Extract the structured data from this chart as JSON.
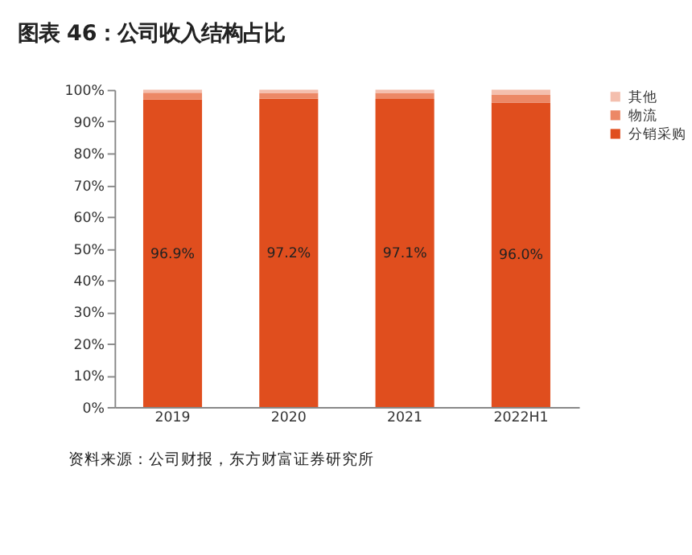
{
  "chart_data": {
    "type": "bar",
    "stacked": true,
    "title": "图表 46：公司收入结构占比",
    "categories": [
      "2019",
      "2020",
      "2021",
      "2022H1"
    ],
    "series": [
      {
        "name": "分销采购",
        "color": "#e04e1e",
        "values": [
          96.9,
          97.2,
          97.1,
          96.0
        ],
        "value_labels": [
          "96.9%",
          "97.2%",
          "97.1%",
          "96.0%"
        ]
      },
      {
        "name": "物流",
        "color": "#ec8866",
        "values": [
          2.2,
          1.8,
          1.9,
          2.5
        ]
      },
      {
        "name": "其他",
        "color": "#f4bfae",
        "values": [
          0.9,
          1.0,
          1.0,
          1.5
        ]
      }
    ],
    "ylim": [
      0,
      100
    ],
    "yticks": [
      {
        "value": 0,
        "label": "0%"
      },
      {
        "value": 10,
        "label": "10%"
      },
      {
        "value": 20,
        "label": "20%"
      },
      {
        "value": 30,
        "label": "30%"
      },
      {
        "value": 40,
        "label": "40%"
      },
      {
        "value": 50,
        "label": "50%"
      },
      {
        "value": 60,
        "label": "60%"
      },
      {
        "value": 70,
        "label": "70%"
      },
      {
        "value": 80,
        "label": "80%"
      },
      {
        "value": 90,
        "label": "90%"
      },
      {
        "value": 100,
        "label": "100%"
      }
    ],
    "grid": false,
    "legend": "right",
    "annotations": [
      "资料来源：公司财报，东方财富证券研究所"
    ]
  }
}
